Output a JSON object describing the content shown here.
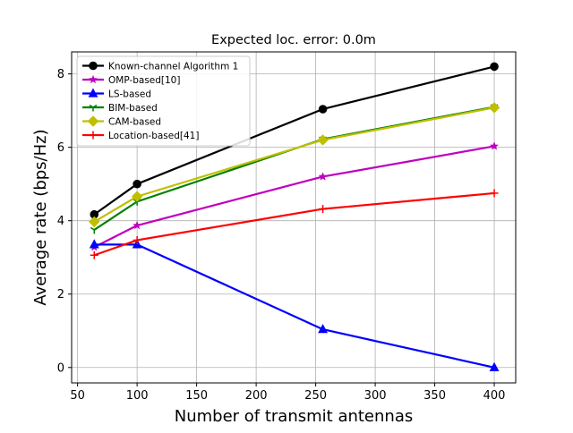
{
  "chart_data": {
    "type": "line",
    "title": "Expected loc. error: 0.0m",
    "xlabel": "Number of transmit antennas",
    "ylabel": "Average rate (bps/Hz)",
    "xlim": [
      45,
      418
    ],
    "ylim": [
      -0.42,
      8.6
    ],
    "xticks": [
      50,
      100,
      150,
      200,
      250,
      300,
      350,
      400
    ],
    "yticks": [
      0,
      2,
      4,
      6,
      8
    ],
    "x": [
      64,
      100,
      256,
      400
    ],
    "grid": true,
    "legend_position": "upper-left",
    "series": [
      {
        "name": "Known-channel Algorithm 1",
        "color": "#000000",
        "marker": "circle",
        "values": [
          4.17,
          5.0,
          7.04,
          8.2
        ]
      },
      {
        "name": "OMP-based[10]",
        "color": "#bf00bf",
        "marker": "star",
        "values": [
          3.28,
          3.87,
          5.2,
          6.03
        ]
      },
      {
        "name": "LS-based",
        "color": "#0000ff",
        "marker": "triangle",
        "values": [
          3.35,
          3.35,
          1.04,
          0.0
        ]
      },
      {
        "name": "BIM-based",
        "color": "#008000",
        "marker": "tri",
        "values": [
          3.75,
          4.52,
          6.22,
          7.1
        ]
      },
      {
        "name": "CAM-based",
        "color": "#bfbf00",
        "marker": "diamond",
        "values": [
          3.97,
          4.66,
          6.2,
          7.08
        ]
      },
      {
        "name": "Location-based[41]",
        "color": "#ff0000",
        "marker": "plus",
        "values": [
          3.06,
          3.47,
          4.32,
          4.75
        ]
      }
    ]
  }
}
